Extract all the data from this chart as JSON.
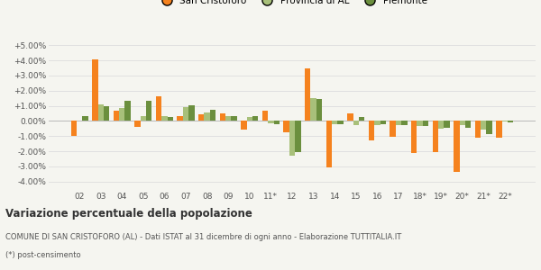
{
  "categories": [
    "02",
    "03",
    "04",
    "05",
    "06",
    "07",
    "08",
    "09",
    "10",
    "11*",
    "12",
    "13",
    "14",
    "15",
    "16",
    "17",
    "18*",
    "19*",
    "20*",
    "21*",
    "22*"
  ],
  "san_cristoforo": [
    -1.0,
    4.05,
    0.7,
    -0.4,
    1.65,
    0.35,
    0.45,
    0.5,
    -0.55,
    0.65,
    -0.75,
    3.45,
    -3.05,
    0.5,
    -1.3,
    -1.05,
    -2.1,
    -2.05,
    -3.35,
    -1.1,
    -1.1
  ],
  "provincia_al": [
    0.0,
    1.1,
    0.85,
    0.3,
    0.3,
    0.9,
    0.55,
    0.35,
    0.25,
    -0.15,
    -2.3,
    1.5,
    -0.2,
    -0.3,
    -0.25,
    -0.3,
    -0.35,
    -0.5,
    -0.25,
    -0.6,
    -0.05
  ],
  "piemonte": [
    0.35,
    0.95,
    1.35,
    1.35,
    0.25,
    1.05,
    0.75,
    0.35,
    0.3,
    -0.2,
    -2.05,
    1.45,
    -0.2,
    0.25,
    -0.2,
    -0.3,
    -0.35,
    -0.45,
    -0.45,
    -0.85,
    -0.1
  ],
  "color_san_cristoforo": "#f5821e",
  "color_provincia": "#a8c07a",
  "color_piemonte": "#6b8f3e",
  "ylim": [
    -4.5,
    5.5
  ],
  "yticks": [
    -4.0,
    -3.0,
    -2.0,
    -1.0,
    0.0,
    1.0,
    2.0,
    3.0,
    4.0,
    5.0
  ],
  "title": "Variazione percentuale della popolazione",
  "subtitle": "COMUNE DI SAN CRISTOFORO (AL) - Dati ISTAT al 31 dicembre di ogni anno - Elaborazione TUTTITALIA.IT",
  "footnote": "(*) post-censimento",
  "legend_labels": [
    "San Cristoforo",
    "Provincia di AL",
    "Piemonte"
  ],
  "background_color": "#f5f5f0",
  "grid_color": "#dddddd",
  "text_color": "#555555"
}
